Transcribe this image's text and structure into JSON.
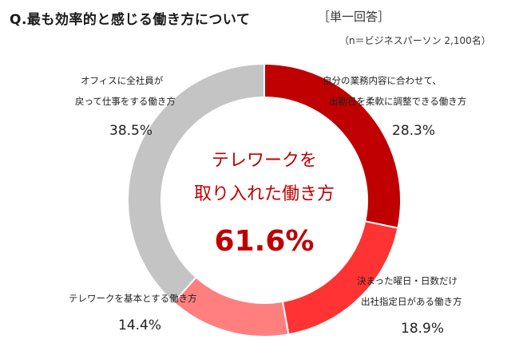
{
  "header": {
    "question": "Q.最も効率的と感じる働き方について",
    "answer_type": "［単一回答］",
    "sample": "（n＝ビジネスパーソン 2,100名）"
  },
  "center": {
    "line1": "テレワークを",
    "line2": "取り入れた働き方",
    "total": "61.6%"
  },
  "chart_data": {
    "type": "pie",
    "donut": true,
    "title": "Q.最も効率的と感じる働き方について",
    "categories": [
      "自分の業務内容に合わせて、出勤日を柔軟に調整できる働き方",
      "決まった曜日・日数だけ出社指定日がある働き方",
      "テレワークを基本とする働き方",
      "オフィスに全社員が戻って仕事をする働き方"
    ],
    "values": [
      28.3,
      18.9,
      14.4,
      38.5
    ],
    "colors": [
      "#c00000",
      "#ff3333",
      "#ff7f7f",
      "#c4c4c4"
    ],
    "labels": [
      {
        "line1": "自分の業務内容に合わせて、",
        "line2": "出勤日を柔軟に調整できる働き方",
        "pct": "28.3%"
      },
      {
        "line1": "決まった曜日・日数だけ",
        "line2": "出社指定日がある働き方",
        "pct": "18.9%"
      },
      {
        "line1": "テレワークを基本とする働き方",
        "pct": "14.4%"
      },
      {
        "line1": "オフィスに全社員が",
        "line2": "戻って仕事をする働き方",
        "pct": "38.5%"
      }
    ]
  }
}
